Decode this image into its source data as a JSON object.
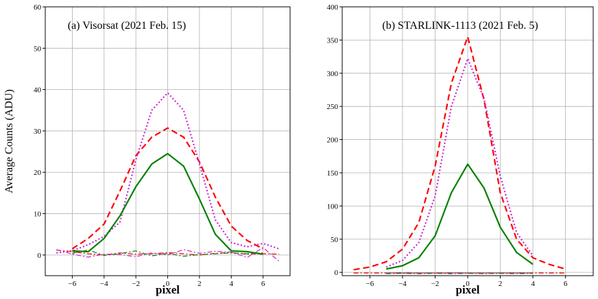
{
  "chart_data": [
    {
      "type": "line",
      "title": "(a) Visorsat (2021 Feb. 15)",
      "xlabel": "pixel",
      "ylabel": "Average Counts (ADU)",
      "xlim": [
        -7.7,
        7.7
      ],
      "ylim": [
        -5,
        60
      ],
      "xticks": [
        -6,
        -4,
        -2,
        0,
        2,
        4,
        6
      ],
      "xtick_labels": [
        "−6",
        "−4",
        "−2",
        "0",
        "2",
        "4",
        "6"
      ],
      "yticks": [
        0,
        10,
        20,
        30,
        40,
        50,
        60
      ],
      "ytick_labels": [
        "0",
        "10",
        "20",
        "30",
        "40",
        "50",
        "60"
      ],
      "grid": true,
      "series": [
        {
          "color": "#ff0000",
          "style": "dashed",
          "x": [
            -6,
            -5,
            -4,
            -3,
            -2,
            -1,
            0,
            1,
            2,
            3,
            4,
            5,
            6
          ],
          "y": [
            1.5,
            4.0,
            7.5,
            15.5,
            24.0,
            28.5,
            30.7,
            28.5,
            22.5,
            14.0,
            7.0,
            3.5,
            1.5
          ]
        },
        {
          "color": "#cc22cc",
          "style": "dotted",
          "x": [
            -7,
            -6,
            -5,
            -4,
            -3,
            -2,
            -1,
            0,
            1,
            2,
            3,
            4,
            5,
            6,
            7
          ],
          "y": [
            0.5,
            1.0,
            2.5,
            4.5,
            8.0,
            23.0,
            35.0,
            39.2,
            35.0,
            22.0,
            8.5,
            3.0,
            2.0,
            2.8,
            1.5
          ]
        },
        {
          "color": "#008000",
          "style": "solid",
          "x": [
            -6,
            -5,
            -4,
            -3,
            -2,
            -1,
            0,
            1,
            2,
            3,
            4,
            5,
            6
          ],
          "y": [
            1.0,
            0.8,
            4.0,
            9.5,
            16.5,
            22.0,
            24.5,
            21.5,
            13.5,
            5.0,
            1.0,
            0.8,
            0.2
          ]
        },
        {
          "color": "#ff0000",
          "style": "dashdot",
          "x": [
            -7,
            -6,
            -5,
            -4,
            -3,
            -2,
            -1,
            0,
            1,
            2,
            3,
            4,
            5,
            6,
            7
          ],
          "y": [
            1.2,
            0.8,
            0.3,
            0.0,
            0.5,
            0.2,
            0.3,
            0.6,
            0.3,
            0.0,
            0.4,
            0.6,
            0.2,
            0.3,
            0.2
          ]
        },
        {
          "color": "#cc22cc",
          "style": "dashdot",
          "x": [
            -7,
            -6,
            -5,
            -4,
            -3,
            -2,
            -1,
            0,
            1,
            2,
            3,
            4,
            5,
            6,
            7
          ],
          "y": [
            1.3,
            0.2,
            -0.5,
            0.2,
            0.1,
            -0.4,
            0.5,
            0.0,
            1.3,
            0.4,
            0.9,
            0.7,
            -0.6,
            1.8,
            -1.5
          ]
        },
        {
          "color": "#008000",
          "style": "dashdot",
          "x": [
            -6,
            -5,
            -4,
            -3,
            -2,
            -1,
            0,
            1,
            2,
            3,
            4,
            5,
            6
          ],
          "y": [
            0.4,
            1.2,
            -0.1,
            0.3,
            1.0,
            -0.2,
            0.4,
            -0.3,
            0.1,
            0.3,
            0.5,
            0.3,
            0.5
          ]
        }
      ]
    },
    {
      "type": "line",
      "title": "(b) STARLINK-1113 (2021 Feb. 5)",
      "xlabel": "pixel",
      "ylabel": "",
      "xlim": [
        -7.7,
        7.7
      ],
      "ylim": [
        -5,
        400
      ],
      "xticks": [
        -6,
        -4,
        -2,
        0,
        2,
        4,
        6
      ],
      "xtick_labels": [
        "−6",
        "−4",
        "−2",
        "0",
        "2",
        "4",
        "6"
      ],
      "yticks": [
        0,
        50,
        100,
        150,
        200,
        250,
        300,
        350,
        400
      ],
      "ytick_labels": [
        "0",
        "50",
        "100",
        "150",
        "200",
        "250",
        "300",
        "350",
        "400"
      ],
      "grid": true,
      "series": [
        {
          "color": "#ff0000",
          "style": "dashed",
          "x": [
            -7,
            -6,
            -5,
            -4,
            -3,
            -2,
            -1,
            0,
            1,
            2,
            3,
            4,
            5,
            6
          ],
          "y": [
            4,
            8,
            16,
            35,
            75,
            160,
            285,
            355,
            260,
            120,
            50,
            22,
            12,
            5
          ]
        },
        {
          "color": "#cc22cc",
          "style": "dotted",
          "x": [
            -5,
            -4,
            -3,
            -2,
            -1,
            0,
            1,
            2,
            3,
            4
          ],
          "y": [
            8,
            18,
            45,
            115,
            250,
            322,
            262,
            145,
            60,
            25
          ]
        },
        {
          "color": "#008000",
          "style": "solid",
          "x": [
            -5,
            -4,
            -3,
            -2,
            -1,
            0,
            1,
            2,
            3,
            4
          ],
          "y": [
            5,
            10,
            22,
            55,
            120,
            163,
            127,
            68,
            30,
            12
          ]
        },
        {
          "color": "#ff0000",
          "style": "dashdot",
          "x": [
            -7,
            -6,
            -5,
            -4,
            -3,
            -2,
            -1,
            0,
            1,
            2,
            3,
            4,
            5,
            6
          ],
          "y": [
            -1,
            -1,
            -1,
            -1,
            -1,
            -1,
            -1,
            -1,
            -1,
            -1,
            -1,
            -1,
            -1,
            -1
          ]
        },
        {
          "color": "#cc22cc",
          "style": "dashdot",
          "x": [
            -5,
            -4,
            -3,
            -2,
            -1,
            0,
            1,
            2,
            3,
            4
          ],
          "y": [
            -1,
            -0.5,
            -1,
            -1,
            -0.5,
            -1,
            -1,
            -1,
            -0.5,
            -1
          ]
        },
        {
          "color": "#008000",
          "style": "dashdot",
          "x": [
            -5,
            -4,
            -3,
            -2,
            -1,
            0,
            1,
            2,
            3,
            4
          ],
          "y": [
            -2,
            -1.5,
            -2,
            -1.5,
            -2,
            -1.5,
            -2,
            -1.5,
            -2,
            -1.5
          ]
        }
      ]
    }
  ]
}
